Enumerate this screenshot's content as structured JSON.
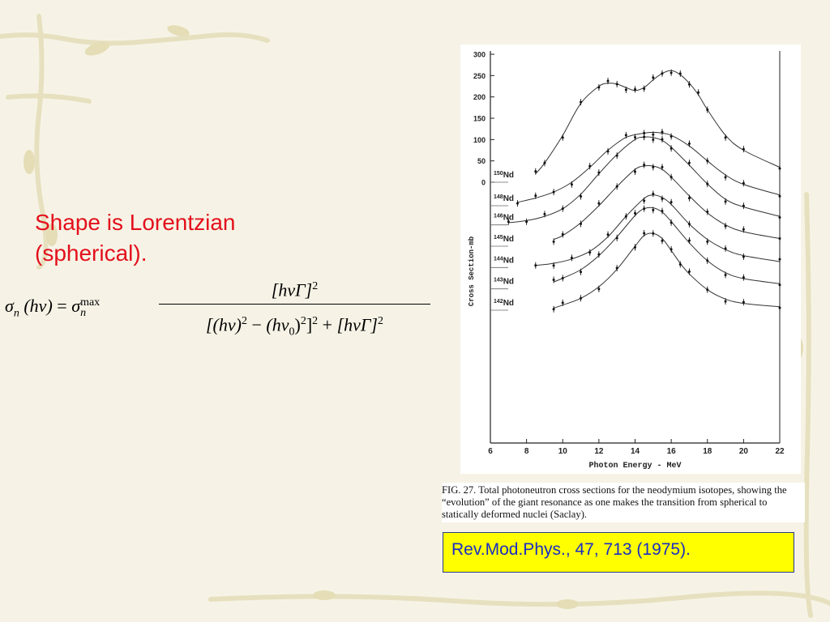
{
  "slide": {
    "heading_line1": "Shape is Lorentzian",
    "heading_line2": "(spherical).",
    "reference": "Rev.Mod.Phys., 47, 713 (1975).",
    "caption_label": "FIG. 27.",
    "caption_text": "Total photoneutron cross sections for the neodymium isotopes, showing the “evolution” of the giant resonance as one makes the transition from spherical to statically deformed nuclei (Saclay).",
    "colors": {
      "heading": "#e3101c",
      "reference_text": "#1a2dc4",
      "reference_bg": "#ffff00",
      "background": "#f6f3e6"
    }
  },
  "formula": {
    "lhs_sigma": "σ",
    "lhs_sub": "n",
    "lhs_arg": "(hν)",
    "equals": "=",
    "rhs_sigma": "σ",
    "rhs_sub": "n",
    "rhs_sup": "max",
    "numerator": "[hνΓ]",
    "numerator_exp": "2",
    "den_a": "[(hν)",
    "den_a_exp": "2",
    "den_minus": "−",
    "den_b": "(hν",
    "den_b_sub": "0",
    "den_b_close": ")",
    "den_b_exp": "2",
    "den_close": "]",
    "den_close_exp": "2",
    "den_plus": "+",
    "den_c": "[hνΓ]",
    "den_c_exp": "2"
  },
  "chart_data": {
    "type": "line",
    "xlabel": "Photon Energy - MeV",
    "ylabel": "Cross Section-mb",
    "xlim": [
      6,
      22
    ],
    "x_ticks": [
      6,
      8,
      10,
      12,
      14,
      16,
      18,
      20,
      22
    ],
    "y_ticks": [
      0,
      50,
      100,
      150,
      200,
      250,
      300
    ],
    "grid": false,
    "series": [
      {
        "name": "150Nd",
        "sup": "150",
        "el": "Nd",
        "offset": 0,
        "x": [
          8.5,
          9,
          10,
          11,
          12,
          12.5,
          13,
          13.5,
          14,
          14.5,
          15,
          15.5,
          16,
          16.5,
          17,
          17.5,
          18,
          19,
          20,
          22
        ],
        "values": [
          20,
          45,
          110,
          185,
          225,
          232,
          230,
          222,
          215,
          222,
          240,
          255,
          262,
          252,
          232,
          205,
          170,
          110,
          75,
          35
        ]
      },
      {
        "name": "148Nd",
        "sup": "148",
        "el": "Nd",
        "offset": -55,
        "x": [
          7.5,
          8.5,
          9.5,
          10.5,
          11.5,
          12.5,
          13.5,
          14.5,
          15,
          15.5,
          16,
          17,
          18,
          19,
          20,
          22
        ],
        "values": [
          8,
          18,
          32,
          55,
          90,
          130,
          160,
          170,
          172,
          170,
          165,
          140,
          105,
          72,
          50,
          25
        ]
      },
      {
        "name": "146Nd",
        "sup": "146",
        "el": "Nd",
        "offset": -100,
        "x": [
          7,
          8,
          9,
          10,
          11,
          12,
          13,
          14,
          14.5,
          15,
          15.5,
          16,
          17,
          18,
          19,
          20,
          22
        ],
        "values": [
          5,
          10,
          20,
          38,
          72,
          120,
          165,
          200,
          206,
          205,
          198,
          182,
          140,
          96,
          60,
          42,
          20
        ]
      },
      {
        "name": "145Nd",
        "sup": "145",
        "el": "Nd",
        "offset": -150,
        "x": [
          9.5,
          10,
          11,
          12,
          13,
          14,
          14.5,
          15,
          15.5,
          16,
          17,
          18,
          19,
          20,
          22
        ],
        "values": [
          16,
          25,
          55,
          95,
          140,
          180,
          188,
          188,
          180,
          162,
          118,
          78,
          50,
          34,
          18
        ]
      },
      {
        "name": "144Nd",
        "sup": "144",
        "el": "Nd",
        "offset": -200,
        "x": [
          8.5,
          9.5,
          10.5,
          11.5,
          12.5,
          13.5,
          14.5,
          15,
          15.5,
          16,
          17,
          18,
          19,
          20,
          22
        ],
        "values": [
          5,
          10,
          20,
          38,
          72,
          120,
          162,
          170,
          164,
          148,
          102,
          66,
          42,
          28,
          14
        ]
      },
      {
        "name": "143Nd",
        "sup": "143",
        "el": "Nd",
        "offset": -250,
        "x": [
          9.5,
          10,
          11,
          12,
          13,
          14,
          14.5,
          15,
          15.5,
          16,
          17,
          18,
          19,
          20,
          22
        ],
        "values": [
          16,
          25,
          45,
          78,
          122,
          172,
          188,
          190,
          180,
          158,
          108,
          66,
          38,
          24,
          12
        ]
      },
      {
        "name": "142Nd",
        "sup": "142",
        "el": "Nd",
        "offset": -300,
        "x": [
          9.5,
          10,
          11,
          12,
          13,
          14,
          14.5,
          15,
          15.5,
          16,
          16.5,
          17,
          18,
          19,
          20,
          22
        ],
        "values": [
          5,
          12,
          28,
          55,
          96,
          150,
          175,
          180,
          168,
          140,
          110,
          85,
          48,
          26,
          16,
          8
        ]
      }
    ]
  }
}
